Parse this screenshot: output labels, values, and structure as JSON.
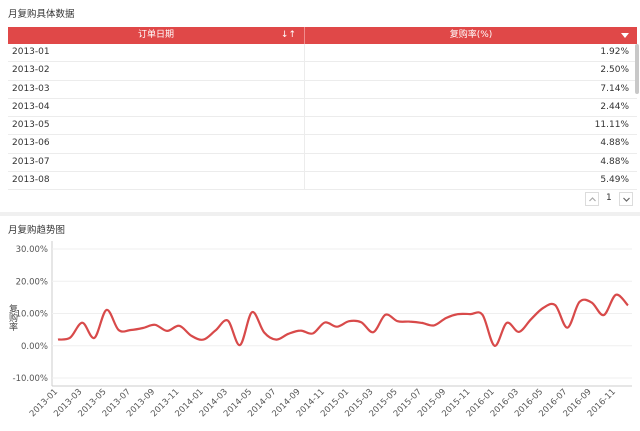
{
  "table_panel": {
    "title": "月复购具体数据",
    "columns": [
      "订单日期",
      "复购率(%)"
    ],
    "rows": [
      {
        "date": "2013-01",
        "rate": "1.92%"
      },
      {
        "date": "2013-02",
        "rate": "2.50%"
      },
      {
        "date": "2013-03",
        "rate": "7.14%"
      },
      {
        "date": "2013-04",
        "rate": "2.44%"
      },
      {
        "date": "2013-05",
        "rate": "11.11%"
      },
      {
        "date": "2013-06",
        "rate": "4.88%"
      },
      {
        "date": "2013-07",
        "rate": "4.88%"
      },
      {
        "date": "2013-08",
        "rate": "5.49%"
      }
    ],
    "pager": {
      "page": "1"
    },
    "icons": {
      "sort": "sort-icon",
      "dropdown": "dropdown-icon",
      "prev": "chevron-up-icon",
      "next": "chevron-down-icon"
    }
  },
  "chart_panel": {
    "title": "月复购趋势图"
  },
  "chart_data": {
    "type": "line",
    "title": "",
    "xlabel": "",
    "ylabel": "复购率",
    "ylim": [
      -10,
      30
    ],
    "y_ticks": [
      "30.00%",
      "20.00%",
      "10.00%",
      "0.00%",
      "-10.00%"
    ],
    "x_tick_labels": [
      "2013-01",
      "2013-03",
      "2013-05",
      "2013-07",
      "2013-09",
      "2013-11",
      "2014-01",
      "2014-03",
      "2014-05",
      "2014-07",
      "2014-09",
      "2014-11",
      "2015-01",
      "2015-03",
      "2015-05",
      "2015-07",
      "2015-09",
      "2015-11",
      "2016-01",
      "2016-03",
      "2016-05",
      "2016-07",
      "2016-09",
      "2016-11"
    ],
    "line_color": "#d84a4a",
    "grid": true,
    "legend": "none",
    "series": [
      {
        "x": [
          "2013-01",
          "2013-02",
          "2013-03",
          "2013-04",
          "2013-05",
          "2013-06",
          "2013-07",
          "2013-08",
          "2013-09",
          "2013-10",
          "2013-11",
          "2013-12",
          "2014-01",
          "2014-02",
          "2014-03",
          "2014-04",
          "2014-05",
          "2014-06",
          "2014-07",
          "2014-08",
          "2014-09",
          "2014-10",
          "2014-11",
          "2014-12",
          "2015-01",
          "2015-02",
          "2015-03",
          "2015-04",
          "2015-05",
          "2015-06",
          "2015-07",
          "2015-08",
          "2015-09",
          "2015-10",
          "2015-11",
          "2015-12",
          "2016-01",
          "2016-02",
          "2016-03",
          "2016-04",
          "2016-05",
          "2016-06",
          "2016-07",
          "2016-08",
          "2016-09",
          "2016-10",
          "2016-11",
          "2016-12"
        ],
        "values": [
          1.92,
          2.5,
          7.14,
          2.44,
          11.11,
          4.88,
          4.88,
          5.49,
          6.5,
          4.6,
          6.2,
          3.1,
          1.9,
          4.8,
          7.8,
          0.2,
          10.4,
          4.1,
          1.9,
          3.7,
          4.7,
          3.8,
          7.2,
          5.9,
          7.6,
          7.3,
          4.2,
          9.6,
          7.6,
          7.5,
          7.1,
          6.3,
          8.6,
          9.8,
          9.8,
          9.6,
          0.0,
          7.1,
          4.3,
          8.2,
          11.7,
          12.6,
          5.6,
          13.6,
          13.4,
          9.5,
          15.8,
          12.5
        ]
      }
    ]
  }
}
